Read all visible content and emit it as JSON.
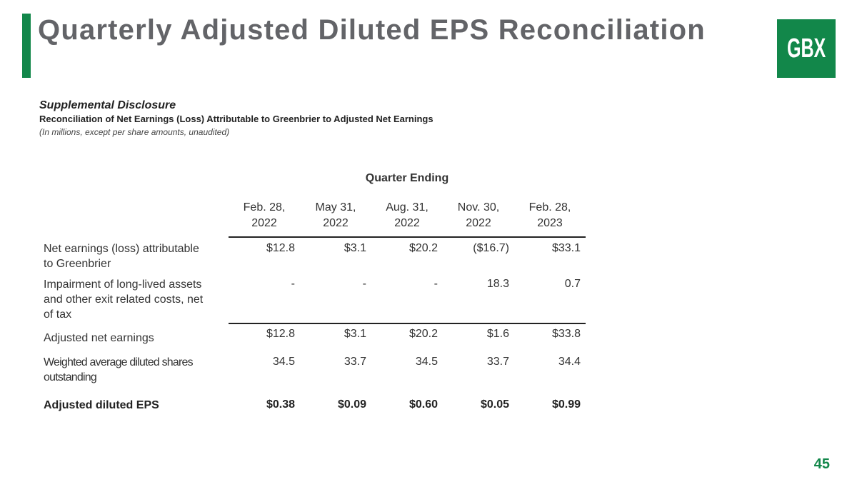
{
  "header": {
    "title": "Quarterly Adjusted Diluted EPS Reconciliation",
    "logo_text": "GBX"
  },
  "disclosure": {
    "title": "Supplemental Disclosure",
    "subtitle": "Reconciliation of Net Earnings (Loss) Attributable to Greenbrier to Adjusted Net Earnings",
    "note": "(In millions, except per share amounts, unaudited)"
  },
  "table": {
    "group_header": "Quarter Ending",
    "columns": [
      {
        "line1": "Feb. 28,",
        "line2": "2022"
      },
      {
        "line1": "May 31,",
        "line2": "2022"
      },
      {
        "line1": "Aug. 31,",
        "line2": "2022"
      },
      {
        "line1": "Nov. 30,",
        "line2": "2022"
      },
      {
        "line1": "Feb. 28,",
        "line2": "2023"
      }
    ],
    "rows": [
      {
        "label_lines": [
          "Net earnings (loss) attributable",
          "to Greenbrier"
        ],
        "values": [
          "$12.8",
          "$3.1",
          "$20.2",
          "($16.7)",
          "$33.1"
        ]
      },
      {
        "label_lines": [
          "Impairment of long-lived assets",
          "and other exit related costs, net",
          "of tax"
        ],
        "values": [
          "-",
          "-",
          "-",
          "18.3",
          "0.7"
        ]
      },
      {
        "label_lines": [
          "Adjusted net earnings"
        ],
        "values": [
          "$12.8",
          "$3.1",
          "$20.2",
          "$1.6",
          "$33.8"
        ]
      },
      {
        "label_lines": [
          "Weighted average diluted shares",
          "outstanding"
        ],
        "values": [
          "34.5",
          "33.7",
          "34.5",
          "33.7",
          "34.4"
        ]
      },
      {
        "label_lines": [
          "Adjusted diluted EPS"
        ],
        "values": [
          "$0.38",
          "$0.09",
          "$0.60",
          "$0.05",
          "$0.99"
        ]
      }
    ]
  },
  "footer": {
    "page_number": "45"
  },
  "colors": {
    "accent": "#12874a",
    "title": "#636468"
  }
}
